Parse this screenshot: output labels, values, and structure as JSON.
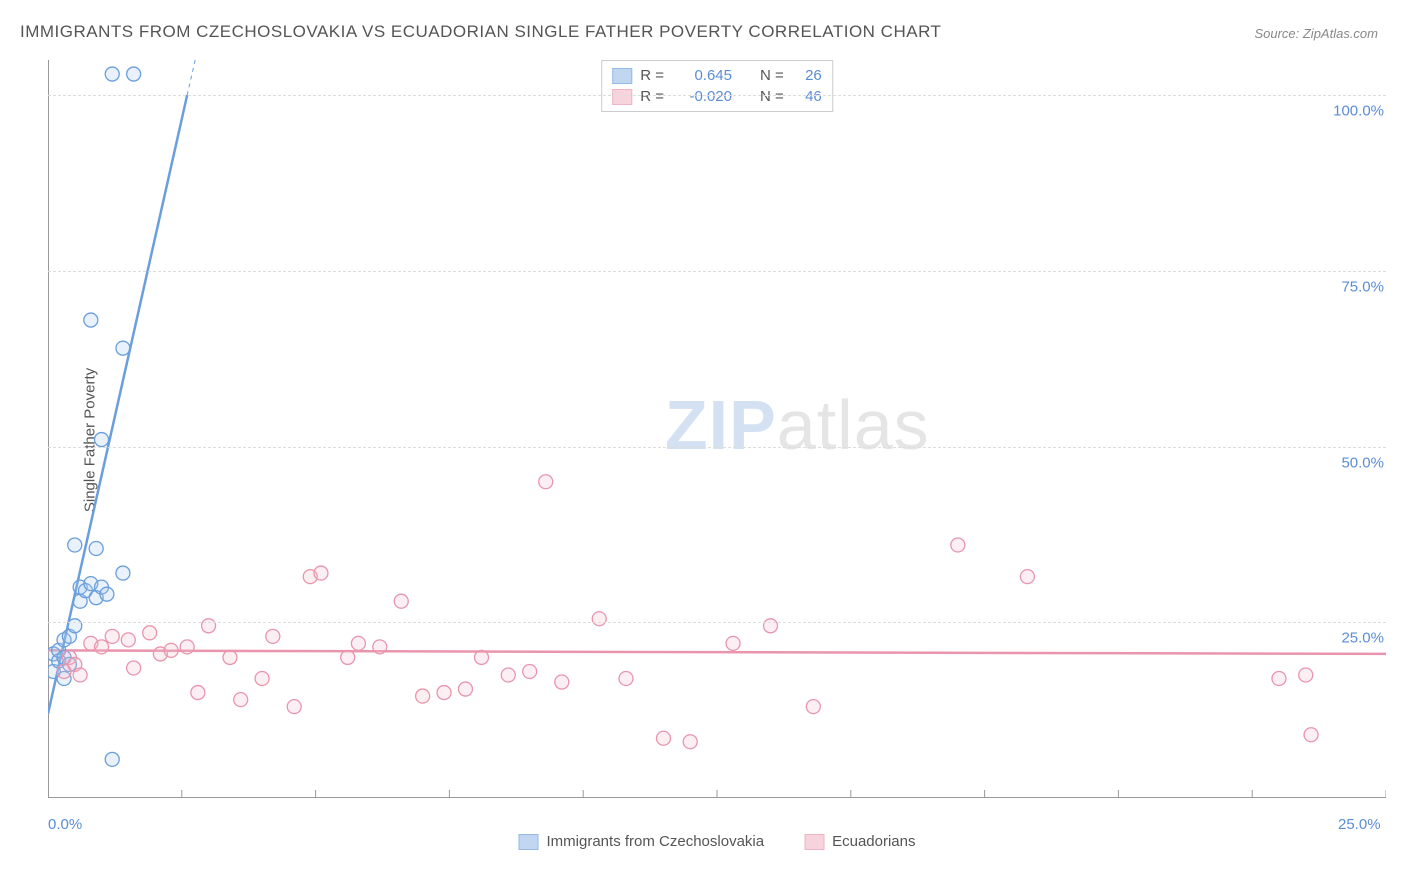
{
  "title": "IMMIGRANTS FROM CZECHOSLOVAKIA VS ECUADORIAN SINGLE FATHER POVERTY CORRELATION CHART",
  "source_label": "Source: ",
  "source_value": "ZipAtlas.com",
  "y_axis_label": "Single Father Poverty",
  "watermark_part1": "ZIP",
  "watermark_part2": "atlas",
  "chart": {
    "type": "scatter",
    "background_color": "#ffffff",
    "grid_color": "#dddddd",
    "axis_color": "#999999",
    "text_color": "#555555",
    "tick_color": "#5b8dd6",
    "xlim": [
      0.0,
      25.0
    ],
    "ylim": [
      0.0,
      105.0
    ],
    "x_ticks": [
      0.0,
      25.0
    ],
    "x_tick_labels": [
      "0.0%",
      "25.0%"
    ],
    "x_minor_tick_step": 2.5,
    "y_ticks": [
      25.0,
      50.0,
      75.0,
      100.0
    ],
    "y_tick_labels": [
      "25.0%",
      "50.0%",
      "75.0%",
      "100.0%"
    ],
    "marker_radius": 7,
    "marker_stroke_width": 1.3,
    "marker_fill_opacity": 0.25,
    "trend_line_width_solid": 2.5,
    "trend_line_width_dashed": 1
  },
  "series": [
    {
      "id": "czech",
      "name": "Immigrants from Czechoslovakia",
      "color_stroke": "#6a9edc",
      "color_fill": "#a8c7ec",
      "R": "0.645",
      "N": "26",
      "trend": {
        "x1": 0.0,
        "y1": 12.0,
        "x2_solid": 2.6,
        "y2_solid": 100.0,
        "x2_dashed": 2.9,
        "y2_dashed": 110.0
      },
      "points": [
        [
          0.1,
          18.0
        ],
        [
          0.1,
          20.5
        ],
        [
          0.2,
          19.5
        ],
        [
          0.2,
          21.0
        ],
        [
          0.3,
          20.0
        ],
        [
          0.3,
          22.5
        ],
        [
          0.3,
          17.0
        ],
        [
          0.4,
          23.0
        ],
        [
          0.4,
          19.0
        ],
        [
          0.5,
          24.5
        ],
        [
          0.6,
          28.0
        ],
        [
          0.6,
          30.0
        ],
        [
          0.7,
          29.5
        ],
        [
          0.8,
          30.5
        ],
        [
          0.9,
          28.5
        ],
        [
          1.0,
          30.0
        ],
        [
          1.1,
          29.0
        ],
        [
          1.4,
          32.0
        ],
        [
          0.9,
          35.5
        ],
        [
          0.5,
          36.0
        ],
        [
          1.0,
          51.0
        ],
        [
          1.4,
          64.0
        ],
        [
          0.8,
          68.0
        ],
        [
          1.2,
          103.0
        ],
        [
          1.6,
          103.0
        ],
        [
          1.2,
          5.5
        ]
      ]
    },
    {
      "id": "ecuadorian",
      "name": "Ecuadorians",
      "color_stroke": "#e895ad",
      "color_fill": "#f4c1d0",
      "R": "-0.020",
      "N": "46",
      "trend": {
        "x1": 0.0,
        "y1": 21.0,
        "x2_solid": 25.0,
        "y2_solid": 20.5
      },
      "points": [
        [
          0.3,
          18.0
        ],
        [
          0.4,
          20.0
        ],
        [
          0.5,
          19.0
        ],
        [
          0.6,
          17.5
        ],
        [
          0.8,
          22.0
        ],
        [
          1.0,
          21.5
        ],
        [
          1.2,
          23.0
        ],
        [
          1.5,
          22.5
        ],
        [
          1.6,
          18.5
        ],
        [
          1.9,
          23.5
        ],
        [
          2.1,
          20.5
        ],
        [
          2.3,
          21.0
        ],
        [
          2.6,
          21.5
        ],
        [
          2.8,
          15.0
        ],
        [
          3.0,
          24.5
        ],
        [
          3.4,
          20.0
        ],
        [
          3.6,
          14.0
        ],
        [
          4.0,
          17.0
        ],
        [
          4.2,
          23.0
        ],
        [
          4.6,
          13.0
        ],
        [
          4.9,
          31.5
        ],
        [
          5.1,
          32.0
        ],
        [
          5.6,
          20.0
        ],
        [
          5.8,
          22.0
        ],
        [
          6.2,
          21.5
        ],
        [
          6.6,
          28.0
        ],
        [
          7.0,
          14.5
        ],
        [
          7.4,
          15.0
        ],
        [
          7.8,
          15.5
        ],
        [
          8.1,
          20.0
        ],
        [
          8.6,
          17.5
        ],
        [
          9.0,
          18.0
        ],
        [
          9.3,
          45.0
        ],
        [
          9.6,
          16.5
        ],
        [
          10.3,
          25.5
        ],
        [
          10.8,
          17.0
        ],
        [
          11.5,
          8.5
        ],
        [
          12.0,
          8.0
        ],
        [
          12.8,
          22.0
        ],
        [
          13.5,
          24.5
        ],
        [
          14.3,
          13.0
        ],
        [
          17.0,
          36.0
        ],
        [
          18.3,
          31.5
        ],
        [
          23.0,
          17.0
        ],
        [
          23.5,
          17.5
        ],
        [
          23.6,
          9.0
        ]
      ]
    }
  ],
  "legend_top": {
    "r_label": "R =",
    "n_label": "N ="
  },
  "legend_bottom": {
    "items": [
      "Immigrants from Czechoslovakia",
      "Ecuadorians"
    ]
  }
}
